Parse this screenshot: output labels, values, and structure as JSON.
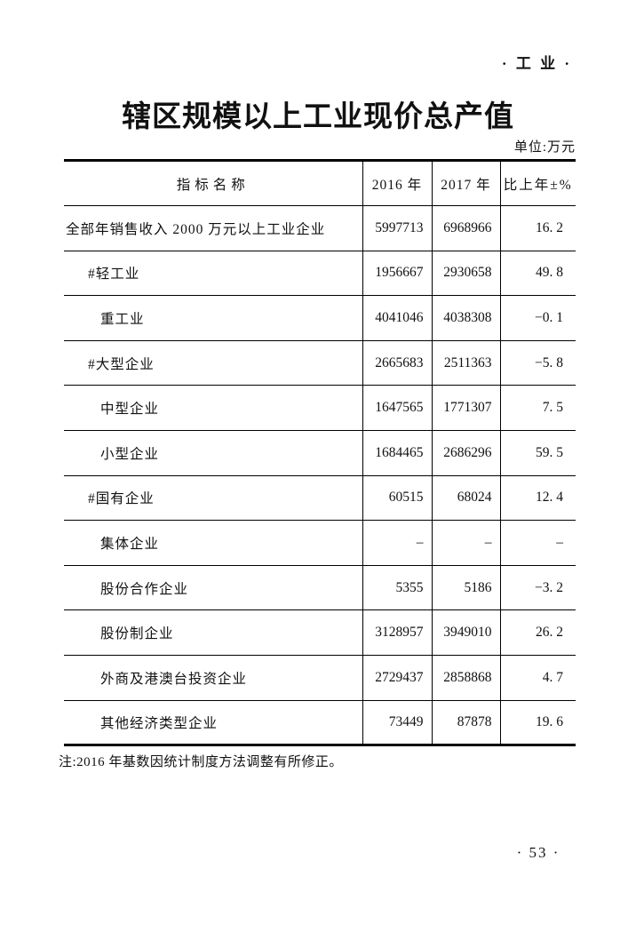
{
  "page": {
    "journal_label": "· 工 业 ·",
    "page_number": "· 53 ·"
  },
  "header": {
    "title": "辖区规模以上工业现价总产值",
    "unit_label": "单位:万元"
  },
  "table": {
    "headers": [
      "指标名称",
      "2016 年",
      "2017 年",
      "比上年±%"
    ],
    "rows": [
      {
        "label": "全部年销售收入 2000 万元以上工业企业",
        "indent": 0,
        "y2016": "5997713",
        "y2017": "6968966",
        "pct": "16. 2"
      },
      {
        "label": "#轻工业",
        "indent": 1,
        "y2016": "1956667",
        "y2017": "2930658",
        "pct": "49. 8"
      },
      {
        "label": "重工业",
        "indent": 2,
        "y2016": "4041046",
        "y2017": "4038308",
        "pct": "−0. 1"
      },
      {
        "label": "#大型企业",
        "indent": 1,
        "y2016": "2665683",
        "y2017": "2511363",
        "pct": "−5. 8"
      },
      {
        "label": "中型企业",
        "indent": 2,
        "y2016": "1647565",
        "y2017": "1771307",
        "pct": "7. 5"
      },
      {
        "label": "小型企业",
        "indent": 2,
        "y2016": "1684465",
        "y2017": "2686296",
        "pct": "59. 5"
      },
      {
        "label": "#国有企业",
        "indent": 1,
        "y2016": "60515",
        "y2017": "68024",
        "pct": "12. 4"
      },
      {
        "label": "集体企业",
        "indent": 2,
        "y2016": "–",
        "y2017": "–",
        "pct": "–"
      },
      {
        "label": "股份合作企业",
        "indent": 2,
        "y2016": "5355",
        "y2017": "5186",
        "pct": "−3. 2"
      },
      {
        "label": "股份制企业",
        "indent": 2,
        "y2016": "3128957",
        "y2017": "3949010",
        "pct": "26. 2"
      },
      {
        "label": "外商及港澳台投资企业",
        "indent": 2,
        "y2016": "2729437",
        "y2017": "2858868",
        "pct": "4. 7"
      },
      {
        "label": "其他经济类型企业",
        "indent": 2,
        "y2016": "73449",
        "y2017": "87878",
        "pct": "19. 6"
      }
    ]
  },
  "footnote": "注:2016 年基数因统计制度方法调整有所修正。"
}
